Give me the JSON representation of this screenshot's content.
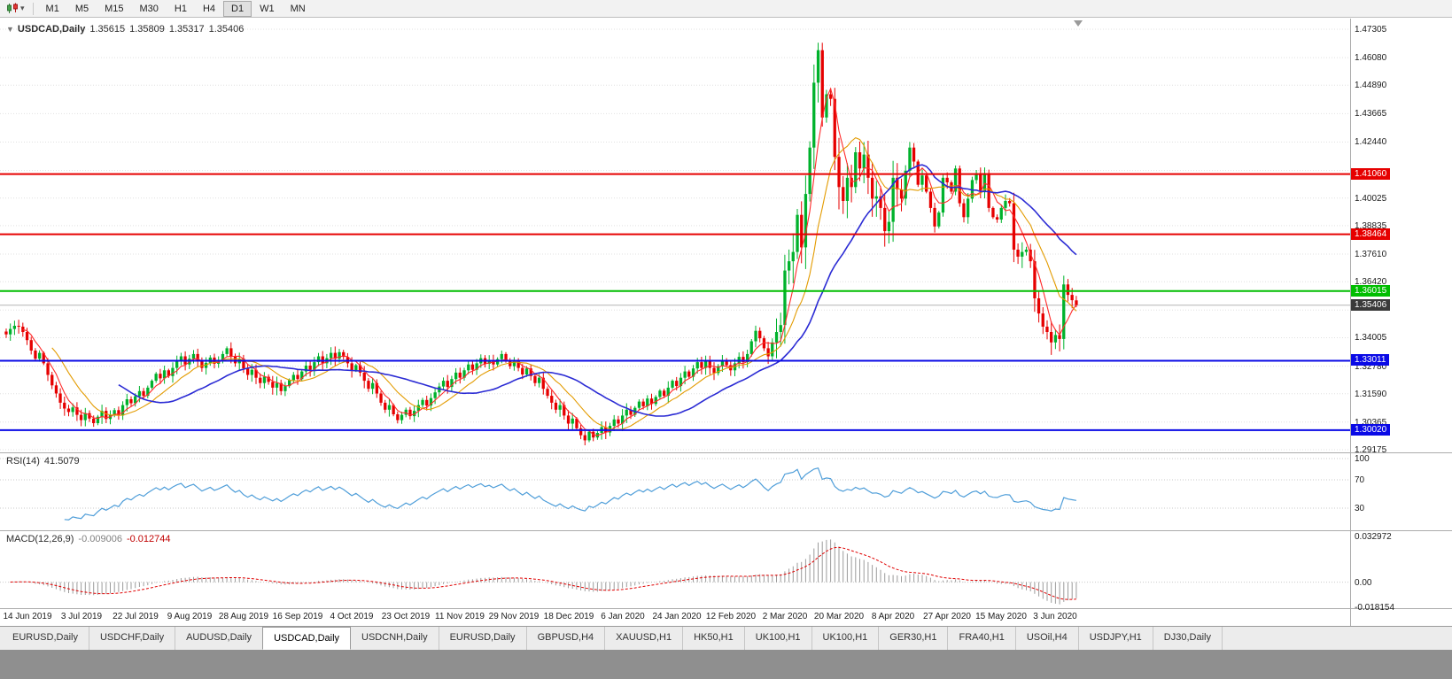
{
  "toolbar": {
    "timeframes": [
      "M1",
      "M5",
      "M15",
      "M30",
      "H1",
      "H4",
      "D1",
      "W1",
      "MN"
    ],
    "active_timeframe": "D1"
  },
  "chart": {
    "symbol_label": "USDCAD,Daily",
    "ohlc": {
      "open": "1.35615",
      "high": "1.35809",
      "low": "1.35317",
      "close": "1.35406"
    }
  },
  "chart_data": {
    "type": "candlestick",
    "symbol": "USDCAD",
    "timeframe": "Daily",
    "colors": {
      "bull": "#00B22C",
      "bear": "#E60000",
      "grid": "#E0E0E0",
      "current_line": "#B4B4B4"
    },
    "x_labels": [
      "14 Jun 2019",
      "3 Jul 2019",
      "22 Jul 2019",
      "9 Aug 2019",
      "28 Aug 2019",
      "16 Sep 2019",
      "4 Oct 2019",
      "23 Oct 2019",
      "11 Nov 2019",
      "29 Nov 2019",
      "18 Dec 2019",
      "6 Jan 2020",
      "24 Jan 2020",
      "12 Feb 2020",
      "2 Mar 2020",
      "20 Mar 2020",
      "8 Apr 2020",
      "27 Apr 2020",
      "15 May 2020",
      "3 Jun 2020"
    ],
    "closes": [
      1.3415,
      1.3438,
      1.3452,
      1.3448,
      1.3425,
      1.339,
      1.3345,
      1.331,
      1.3335,
      1.329,
      1.324,
      1.3195,
      1.316,
      1.312,
      1.3095,
      1.308,
      1.31,
      1.3068,
      1.3045,
      1.3075,
      1.3052,
      1.3032,
      1.306,
      1.3085,
      1.305,
      1.3068,
      1.3088,
      1.3065,
      1.311,
      1.3135,
      1.3118,
      1.3148,
      1.317,
      1.315,
      1.3185,
      1.3215,
      1.3245,
      1.3225,
      1.326,
      1.3235,
      1.327,
      1.33,
      1.332,
      1.3285,
      1.331,
      1.333,
      1.3302,
      1.327,
      1.3292,
      1.3315,
      1.3288,
      1.3305,
      1.333,
      1.3355,
      1.332,
      1.329,
      1.331,
      1.3268,
      1.324,
      1.3262,
      1.3228,
      1.3205,
      1.3232,
      1.321,
      1.3185,
      1.3205,
      1.317,
      1.3192,
      1.3218,
      1.324,
      1.3222,
      1.3255,
      1.328,
      1.3262,
      1.3295,
      1.332,
      1.329,
      1.3312,
      1.3335,
      1.331,
      1.3338,
      1.3318,
      1.329,
      1.326,
      1.3282,
      1.325,
      1.3215,
      1.318,
      1.3205,
      1.316,
      1.312,
      1.309,
      1.311,
      1.307,
      1.3045,
      1.3068,
      1.309,
      1.3062,
      1.3085,
      1.311,
      1.3132,
      1.3108,
      1.314,
      1.3165,
      1.319,
      1.3215,
      1.3188,
      1.3222,
      1.325,
      1.3228,
      1.326,
      1.3285,
      1.3262,
      1.329,
      1.3312,
      1.3288,
      1.3305,
      1.3285,
      1.3308,
      1.333,
      1.3302,
      1.3278,
      1.33,
      1.327,
      1.3242,
      1.3268,
      1.3235,
      1.3205,
      1.3228,
      1.318,
      1.315,
      1.312,
      1.309,
      1.311,
      1.3065,
      1.303,
      1.3052,
      1.301,
      1.298,
      1.2958,
      1.2995,
      1.297,
      1.299,
      1.3015,
      1.2992,
      1.302,
      1.3048,
      1.303,
      1.3065,
      1.309,
      1.3068,
      1.3098,
      1.3125,
      1.3105,
      1.3138,
      1.3115,
      1.3145,
      1.3172,
      1.315,
      1.3185,
      1.3215,
      1.3192,
      1.3228,
      1.3255,
      1.3232,
      1.3268,
      1.3295,
      1.327,
      1.3298,
      1.327,
      1.3248,
      1.3278,
      1.3305,
      1.3282,
      1.326,
      1.329,
      1.3318,
      1.3295,
      1.333,
      1.3385,
      1.343,
      1.3398,
      1.3355,
      1.332,
      1.338,
      1.3425,
      1.3455,
      1.369,
      1.373,
      1.377,
      1.393,
      1.379,
      1.402,
      1.422,
      1.45,
      1.464,
      1.435,
      1.445,
      1.443,
      1.418,
      1.405,
      1.399,
      1.409,
      1.405,
      1.42,
      1.413,
      1.419,
      1.409,
      1.4,
      1.401,
      1.396,
      1.386,
      1.39,
      1.409,
      1.404,
      1.4,
      1.412,
      1.422,
      1.416,
      1.406,
      1.41,
      1.403,
      1.396,
      1.388,
      1.394,
      1.409,
      1.407,
      1.403,
      1.413,
      1.398,
      1.392,
      1.4,
      1.408,
      1.411,
      1.403,
      1.411,
      1.396,
      1.392,
      1.391,
      1.396,
      1.399,
      1.398,
      1.378,
      1.375,
      1.377,
      1.378,
      1.373,
      1.357,
      1.3505,
      1.3448,
      1.3425,
      1.338,
      1.3412,
      1.3395,
      1.363,
      1.3585,
      1.3562,
      1.35406
    ],
    "last_candle": {
      "open": 1.35615,
      "high": 1.35809,
      "low": 1.35317,
      "close": 1.35406
    },
    "grid_prices": [
      1.47305,
      1.4608,
      1.4489,
      1.43665,
      1.4244,
      1.41215,
      1.40025,
      1.38835,
      1.3761,
      1.3642,
      1.35195,
      1.34005,
      1.3278,
      1.3159,
      1.30365,
      1.29175
    ],
    "y_ticks": [
      {
        "label": "1.47305",
        "price": 1.47305
      },
      {
        "label": "1.46080",
        "price": 1.4608
      },
      {
        "label": "1.44890",
        "price": 1.4489
      },
      {
        "label": "1.43665",
        "price": 1.43665
      },
      {
        "label": "1.42440",
        "price": 1.4244
      },
      {
        "label": "1.40025",
        "price": 1.40025
      },
      {
        "label": "1.38835",
        "price": 1.38835
      },
      {
        "label": "1.37610",
        "price": 1.3761
      },
      {
        "label": "1.36420",
        "price": 1.3642
      },
      {
        "label": "1.34005",
        "price": 1.34005
      },
      {
        "label": "1.32780",
        "price": 1.3278
      },
      {
        "label": "1.31590",
        "price": 1.3159
      },
      {
        "label": "1.30365",
        "price": 1.30365
      },
      {
        "label": "1.29175",
        "price": 1.29175
      }
    ],
    "hlines": [
      {
        "label": "1.41060",
        "price": 1.4106,
        "color": "#E60000"
      },
      {
        "label": "1.38464",
        "price": 1.38464,
        "color": "#E60000"
      },
      {
        "label": "1.36015",
        "price": 1.36015,
        "color": "#00BE00"
      },
      {
        "label": "1.33011",
        "price": 1.33011,
        "color": "#0A0AE6"
      },
      {
        "label": "1.30020",
        "price": 1.3002,
        "color": "#0A0AE6"
      }
    ],
    "current_price": {
      "label": "1.35406",
      "value": 1.35406,
      "box_color": "#3A3A3A"
    },
    "moving_averages": [
      {
        "name": "fast-ma",
        "period": 5,
        "color": "#FF2A2A"
      },
      {
        "name": "mid-ma",
        "period": 12,
        "color": "#E39B00"
      },
      {
        "name": "slow-ma",
        "period": 28,
        "color": "#2B2BD4"
      }
    ],
    "indicators": [
      {
        "name": "RSI",
        "title": "RSI(14)",
        "period": 14,
        "value_label": "41.5079",
        "levels": [
          100,
          70,
          30
        ],
        "line_color": "#4F9ED9"
      },
      {
        "name": "MACD",
        "title": "MACD(12,26,9)",
        "fast": 12,
        "slow": 26,
        "signal": 9,
        "value_labels": [
          "-0.009006",
          "-0.012744"
        ],
        "axis_labels": [
          {
            "label": "0.032972",
            "value": 0.032972
          },
          {
            "label": "0.00",
            "value": 0
          },
          {
            "label": "-0.018154",
            "value": -0.018154
          }
        ],
        "histogram_color": "#9B9B9B",
        "signal_color": "#E00000"
      }
    ]
  },
  "tabs": {
    "active_index": 3,
    "items": [
      "EURUSD,Daily",
      "USDCHF,Daily",
      "AUDUSD,Daily",
      "USDCAD,Daily",
      "USDCNH,Daily",
      "EURUSD,Daily",
      "GBPUSD,H4",
      "XAUUSD,H1",
      "HK50,H1",
      "UK100,H1",
      "UK100,H1",
      "GER30,H1",
      "FRA40,H1",
      "USOil,H4",
      "USDJPY,H1",
      "DJ30,Daily"
    ]
  }
}
